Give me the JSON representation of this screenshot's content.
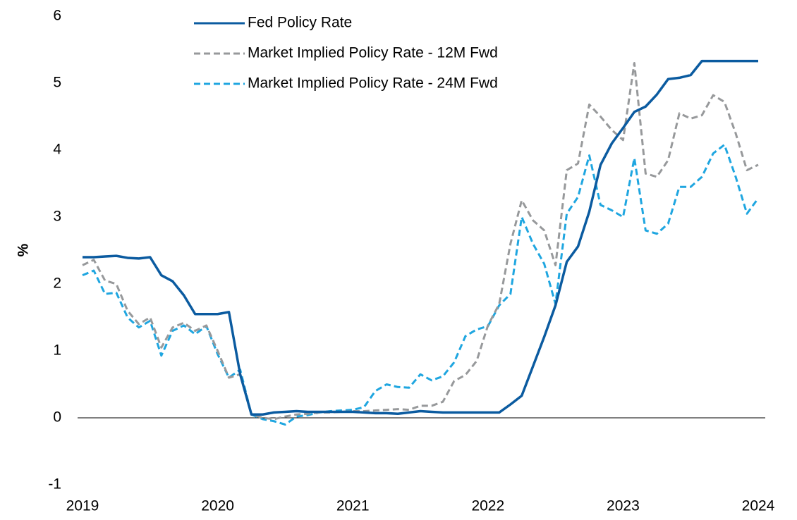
{
  "chart_data": {
    "type": "line",
    "y_label": "%",
    "categories": [
      "2019",
      null,
      null,
      null,
      null,
      null,
      null,
      null,
      null,
      null,
      null,
      null,
      "2020",
      null,
      null,
      null,
      null,
      null,
      null,
      null,
      null,
      null,
      null,
      null,
      "2021",
      null,
      null,
      null,
      null,
      null,
      null,
      null,
      null,
      null,
      null,
      null,
      "2022",
      null,
      null,
      null,
      null,
      null,
      null,
      null,
      null,
      null,
      null,
      null,
      "2023",
      null,
      null,
      null,
      null,
      null,
      null,
      null,
      null,
      null,
      null,
      null,
      "2024"
    ],
    "series": [
      {
        "name": "Fed Policy Rate",
        "color": "#0b5ba0",
        "style": "solid",
        "values": [
          2.4,
          2.4,
          2.41,
          2.42,
          2.39,
          2.38,
          2.4,
          2.13,
          2.04,
          1.83,
          1.55,
          1.55,
          1.55,
          1.58,
          0.65,
          0.05,
          0.05,
          0.08,
          0.09,
          0.1,
          0.09,
          0.09,
          0.09,
          0.09,
          0.09,
          0.08,
          0.07,
          0.07,
          0.06,
          0.08,
          0.1,
          0.09,
          0.08,
          0.08,
          0.08,
          0.08,
          0.08,
          0.08,
          0.2,
          0.33,
          0.77,
          1.21,
          1.68,
          2.33,
          2.56,
          3.08,
          3.78,
          4.1,
          4.33,
          4.57,
          4.65,
          4.83,
          5.06,
          5.08,
          5.12,
          5.33,
          5.33,
          5.33,
          5.33,
          5.33,
          5.33
        ]
      },
      {
        "name": "Market Implied Policy Rate - 12M Fwd",
        "color": "#97999b",
        "style": "dashed",
        "values": [
          2.28,
          2.36,
          2.05,
          2.0,
          1.6,
          1.4,
          1.5,
          1.05,
          1.35,
          1.42,
          1.3,
          1.38,
          1.0,
          0.6,
          0.65,
          0.05,
          0.0,
          -0.02,
          0.02,
          0.05,
          0.06,
          0.08,
          0.08,
          0.09,
          0.1,
          0.1,
          0.11,
          0.12,
          0.13,
          0.12,
          0.18,
          0.18,
          0.24,
          0.55,
          0.64,
          0.85,
          1.38,
          1.7,
          2.6,
          3.25,
          2.95,
          2.8,
          2.28,
          3.7,
          3.8,
          4.68,
          4.5,
          4.3,
          4.15,
          5.3,
          3.65,
          3.6,
          3.85,
          4.55,
          4.47,
          4.52,
          4.82,
          4.72,
          4.25,
          3.7,
          3.78
        ]
      },
      {
        "name": "Market Implied Policy Rate - 24M Fwd",
        "color": "#1fa6e0",
        "style": "dashed",
        "values": [
          2.13,
          2.2,
          1.85,
          1.87,
          1.5,
          1.35,
          1.45,
          0.93,
          1.3,
          1.38,
          1.25,
          1.37,
          0.95,
          0.6,
          0.72,
          0.05,
          -0.02,
          -0.05,
          -0.1,
          0.02,
          0.04,
          0.08,
          0.1,
          0.11,
          0.12,
          0.16,
          0.4,
          0.5,
          0.46,
          0.45,
          0.65,
          0.56,
          0.62,
          0.83,
          1.22,
          1.32,
          1.37,
          1.68,
          1.85,
          3.0,
          2.6,
          2.3,
          1.7,
          3.05,
          3.3,
          3.92,
          3.18,
          3.1,
          3.0,
          3.88,
          2.8,
          2.75,
          2.9,
          3.45,
          3.45,
          3.6,
          3.95,
          4.08,
          3.6,
          3.05,
          3.28
        ]
      }
    ],
    "ylim": [
      -1,
      6
    ],
    "yticks": [
      -1,
      0,
      1,
      2,
      3,
      4,
      5,
      6
    ],
    "grid": false,
    "legend": "top"
  }
}
